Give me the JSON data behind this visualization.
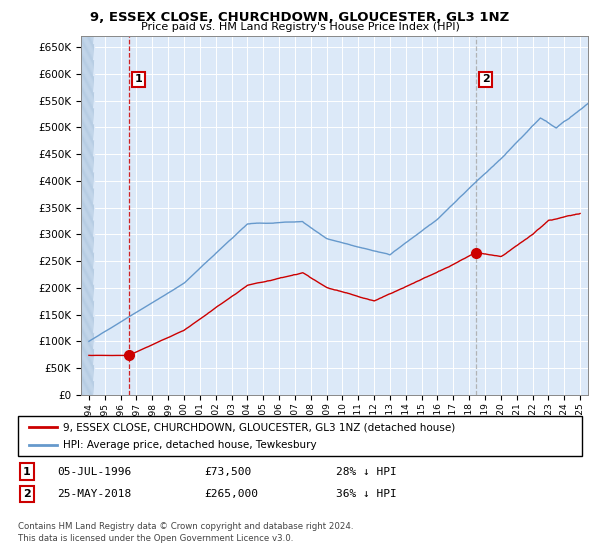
{
  "title": "9, ESSEX CLOSE, CHURCHDOWN, GLOUCESTER, GL3 1NZ",
  "subtitle": "Price paid vs. HM Land Registry's House Price Index (HPI)",
  "legend_label_red": "9, ESSEX CLOSE, CHURCHDOWN, GLOUCESTER, GL3 1NZ (detached house)",
  "legend_label_blue": "HPI: Average price, detached house, Tewkesbury",
  "footnote": "Contains HM Land Registry data © Crown copyright and database right 2024.\nThis data is licensed under the Open Government Licence v3.0.",
  "point1_date": "05-JUL-1996",
  "point1_price": "£73,500",
  "point1_hpi": "28% ↓ HPI",
  "point1_year": 1996.5,
  "point1_value": 73500,
  "point2_date": "25-MAY-2018",
  "point2_price": "£265,000",
  "point2_hpi": "36% ↓ HPI",
  "point2_year": 2018.4,
  "point2_value": 265000,
  "ylim": [
    0,
    670000
  ],
  "xlim_start": 1993.5,
  "xlim_end": 2025.5,
  "background_color": "#dce9f8",
  "grid_color": "#ffffff",
  "red_color": "#cc0000",
  "blue_color": "#6699cc",
  "vline1_color": "#cc0000",
  "vline2_color": "#aaaaaa"
}
